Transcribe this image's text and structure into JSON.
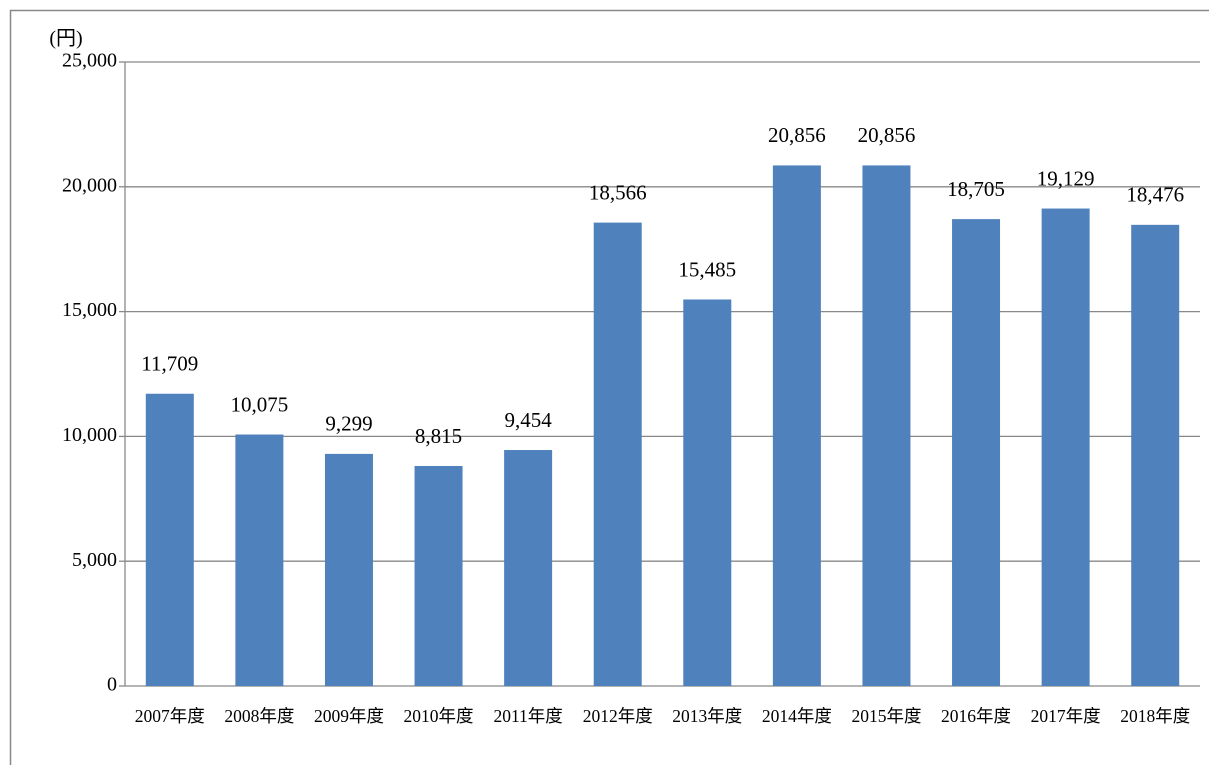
{
  "chart_data": {
    "type": "bar",
    "unit_label": "(円)",
    "categories": [
      "2007年度",
      "2008年度",
      "2009年度",
      "2010年度",
      "2011年度",
      "2012年度",
      "2013年度",
      "2014年度",
      "2015年度",
      "2016年度",
      "2017年度",
      "2018年度"
    ],
    "values": [
      11709,
      10075,
      9299,
      8815,
      9454,
      18566,
      15485,
      20856,
      20856,
      18705,
      19129,
      18476
    ],
    "value_labels": [
      "11,709",
      "10,075",
      "9,299",
      "8,815",
      "9,454",
      "18,566",
      "15,485",
      "20,856",
      "20,856",
      "18,705",
      "19,129",
      "18,476"
    ],
    "color": "#4f81bd",
    "ylim": [
      0,
      25000
    ],
    "yticks": [
      0,
      {
        "value": 5000,
        "label": "5,000"
      },
      {
        "value": 10000,
        "label": "10,000"
      },
      {
        "value": 15000,
        "label": "15,000"
      },
      {
        "value": 20000,
        "label": "20,000"
      },
      {
        "value": 25000,
        "label": "25,000"
      }
    ],
    "grid": true
  }
}
